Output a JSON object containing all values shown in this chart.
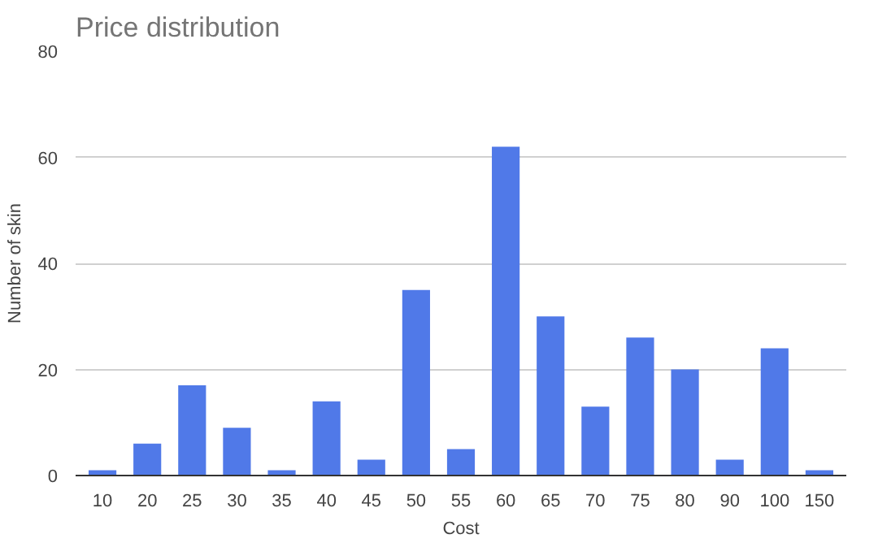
{
  "chart_data": {
    "type": "bar",
    "title": "Price distribution",
    "xlabel": "Cost",
    "ylabel": "Number of skin",
    "categories": [
      "10",
      "20",
      "25",
      "30",
      "35",
      "40",
      "45",
      "50",
      "55",
      "60",
      "65",
      "70",
      "75",
      "80",
      "90",
      "100",
      "150"
    ],
    "values": [
      1,
      6,
      17,
      9,
      1,
      14,
      3,
      35,
      5,
      62,
      30,
      13,
      26,
      20,
      3,
      24,
      1
    ],
    "color": "#5079e8",
    "ylim": [
      0,
      80
    ],
    "yticks": [
      0,
      20,
      40,
      60,
      80
    ],
    "grid": "y"
  }
}
